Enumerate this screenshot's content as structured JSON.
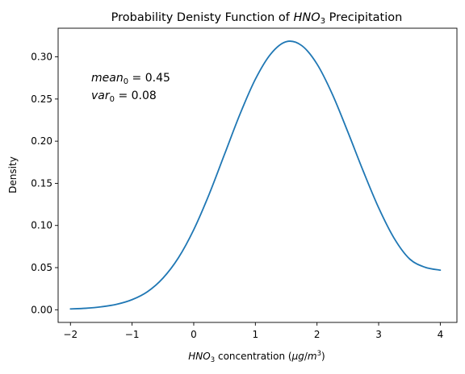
{
  "chart_data": {
    "type": "line",
    "title": {
      "prefix": "Probability Denisty Function of ",
      "formula_base": "HNO",
      "formula_sub": "3",
      "suffix": " Precipitation"
    },
    "xlabel": {
      "formula_base": "HNO",
      "formula_sub": "3",
      "text": " concentration (",
      "unit_mu": "μg",
      "unit_slash": "/",
      "unit_base": "m",
      "unit_sup": "3",
      "close": ")"
    },
    "ylabel": "Density",
    "xlim": [
      -2.2,
      4.27
    ],
    "ylim": [
      -0.015,
      0.334
    ],
    "xticks": [
      -2,
      -1,
      0,
      1,
      2,
      3,
      4
    ],
    "xtick_labels": [
      "−2",
      "−1",
      "0",
      "1",
      "2",
      "3",
      "4"
    ],
    "yticks": [
      0.0,
      0.05,
      0.1,
      0.15,
      0.2,
      0.25,
      0.3
    ],
    "ytick_labels": [
      "0.00",
      "0.05",
      "0.10",
      "0.15",
      "0.20",
      "0.25",
      "0.30"
    ],
    "grid": false,
    "annotations": {
      "mean": {
        "base": "mean",
        "sub": "0",
        "rest": " = 0.45"
      },
      "var": {
        "base": "var",
        "sub": "0",
        "rest": " = 0.08"
      }
    },
    "series": [
      {
        "color": "#1f77b4",
        "x": [
          -2.0,
          -1.75,
          -1.5,
          -1.25,
          -1.0,
          -0.75,
          -0.5,
          -0.25,
          0.0,
          0.25,
          0.5,
          0.75,
          1.0,
          1.25,
          1.5,
          1.75,
          2.0,
          2.25,
          2.5,
          2.75,
          3.0,
          3.25,
          3.5,
          3.75,
          4.0
        ],
        "y": [
          0.001,
          0.0018,
          0.0035,
          0.0065,
          0.012,
          0.0215,
          0.0375,
          0.0615,
          0.095,
          0.137,
          0.1845,
          0.232,
          0.2735,
          0.3035,
          0.318,
          0.3135,
          0.2915,
          0.2555,
          0.211,
          0.1645,
          0.121,
          0.085,
          0.0605,
          0.0505,
          0.047
        ]
      }
    ]
  }
}
